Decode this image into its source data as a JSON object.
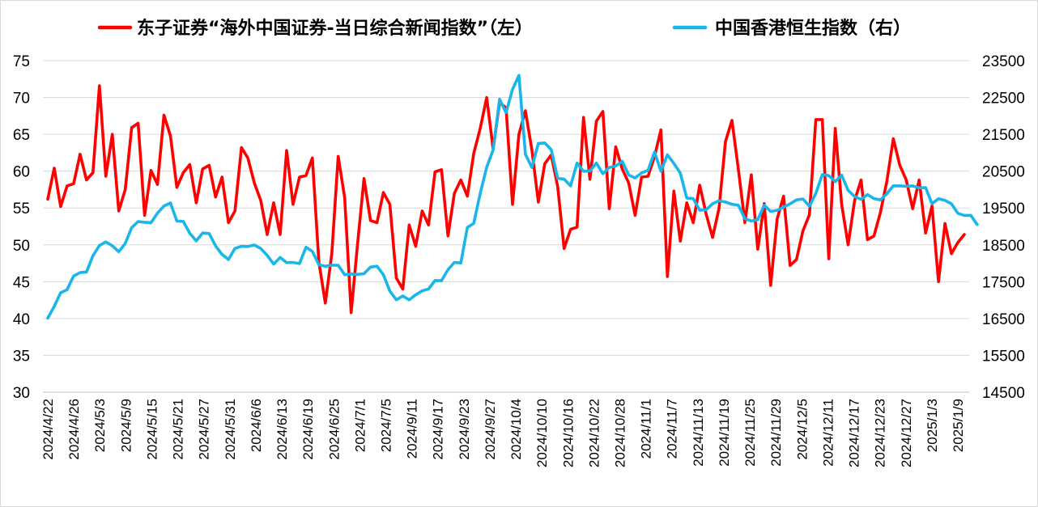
{
  "chart_data": {
    "type": "line",
    "title": "",
    "legend": {
      "placement": "top-center"
    },
    "grid": true,
    "y_left": {
      "ticks": [
        "30",
        "35",
        "40",
        "45",
        "50",
        "55",
        "60",
        "65",
        "70",
        "75"
      ],
      "ylim": [
        30,
        75
      ]
    },
    "y_right": {
      "ticks": [
        "14500",
        "15500",
        "16500",
        "17500",
        "18500",
        "19500",
        "20500",
        "21500",
        "22500",
        "23500"
      ],
      "ylim": [
        14500,
        23500
      ]
    },
    "x_tick_labels": [
      "2024/4/22",
      "2024/4/26",
      "2024/5/3",
      "2024/5/9",
      "2024/5/15",
      "2024/5/21",
      "2024/5/27",
      "2024/5/31",
      "2024/6/6",
      "2024/6/13",
      "2024/6/19",
      "2024/6/25",
      "2024/7/1",
      "2024/7/5",
      "2024/9/11",
      "2024/9/17",
      "2024/9/23",
      "2024/9/27",
      "2024/10/4",
      "2024/10/10",
      "2024/10/16",
      "2024/10/22",
      "2024/10/28",
      "2024/11/1",
      "2024/11/7",
      "2024/11/13",
      "2024/11/19",
      "2024/11/25",
      "2024/11/29",
      "2024/12/5",
      "2024/12/11",
      "2024/12/17",
      "2024/12/23",
      "2024/12/27",
      "2025/1/3",
      "2025/1/9"
    ],
    "series": [
      {
        "name": "东子证券“海外中国证券-当日综合新闻指数”（左）",
        "axis": "left",
        "color": "#ff0000",
        "values": [
          56.2,
          60.4,
          55.2,
          58.0,
          58.3,
          62.3,
          58.8,
          59.8,
          71.6,
          59.3,
          65.0,
          54.6,
          57.5,
          65.9,
          66.5,
          54.0,
          60.1,
          58.2,
          67.6,
          64.8,
          57.8,
          59.8,
          60.9,
          55.7,
          60.3,
          60.8,
          56.5,
          59.2,
          53.0,
          54.6,
          63.2,
          61.8,
          58.4,
          56.0,
          51.4,
          55.7,
          51.4,
          62.8,
          55.5,
          59.2,
          59.4,
          61.8,
          47.7,
          42.1,
          48.8,
          62.0,
          56.4,
          40.8,
          50.1,
          59.0,
          53.3,
          53.0,
          57.1,
          55.5,
          45.5,
          44.0,
          52.7,
          49.8,
          54.6,
          52.7,
          59.9,
          60.2,
          51.2,
          57.0,
          58.8,
          56.6,
          62.4,
          65.8,
          70.0,
          63.0,
          69.3,
          68.6,
          55.5,
          65.0,
          68.2,
          62.9,
          55.8,
          61.0,
          62.2,
          57.9,
          49.5,
          52.1,
          52.4,
          67.3,
          58.9,
          66.8,
          68.1,
          54.9,
          63.3,
          60.3,
          58.4,
          54.0,
          59.2,
          59.3,
          62.0,
          65.6,
          45.7,
          57.3,
          50.5,
          55.7,
          53.0,
          58.1,
          54.2,
          51.0,
          55.0,
          64.0,
          66.9,
          60.2,
          53.0,
          59.5,
          49.4,
          55.6,
          44.5,
          53.5,
          56.6,
          47.2,
          48.0,
          51.9,
          54.1,
          67.0,
          67.0,
          48.1,
          65.8,
          55.5,
          50.0,
          56.0,
          58.8,
          50.7,
          51.2,
          54.4,
          58.6,
          64.4,
          60.8,
          58.8,
          54.9,
          58.8,
          51.6,
          55.3,
          45.0,
          52.9,
          48.8,
          50.3,
          51.4
        ]
      },
      {
        "name": "中国香港恒生指数（右）",
        "axis": "right",
        "color": "#19b6ea",
        "values": [
          16511,
          16829,
          17201,
          17284,
          17652,
          17746,
          17763,
          18206,
          18479,
          18578,
          18476,
          18313,
          18537,
          18964,
          19131,
          19111,
          19101,
          19359,
          19553,
          19636,
          19148,
          19136,
          18814,
          18608,
          18822,
          18807,
          18469,
          18241,
          18102,
          18402,
          18459,
          18453,
          18496,
          18400,
          18214,
          17978,
          18158,
          18016,
          18020,
          17993,
          18433,
          18322,
          17959,
          17918,
          17948,
          17945,
          17690,
          17707,
          17699,
          17715,
          17895,
          17919,
          17689,
          17247,
          17006,
          17113,
          17007,
          17143,
          17251,
          17301,
          17532,
          17526,
          17825,
          18023,
          18008,
          18972,
          19084,
          19895,
          20606,
          21076,
          22452,
          22088,
          22719,
          23100,
          20960,
          20601,
          21252,
          21265,
          21083,
          20303,
          20285,
          20100,
          20720,
          20496,
          20505,
          20718,
          20431,
          20601,
          20640,
          20767,
          20395,
          20314,
          20450,
          20525,
          21020,
          20500,
          20944,
          20711,
          20449,
          19771,
          19754,
          19442,
          19452,
          19614,
          19696,
          19662,
          19599,
          19576,
          19210,
          19146,
          19183,
          19578,
          19407,
          19436,
          19525,
          19612,
          19721,
          19744,
          19549,
          19895,
          20406,
          20378,
          20215,
          20389,
          19978,
          19815,
          19734,
          19865,
          19755,
          19720,
          19884,
          20103,
          20100,
          20090,
          20099,
          20046,
          20052,
          19616,
          19753,
          19707,
          19614,
          19356,
          19298,
          19301,
          19050
        ]
      }
    ]
  }
}
